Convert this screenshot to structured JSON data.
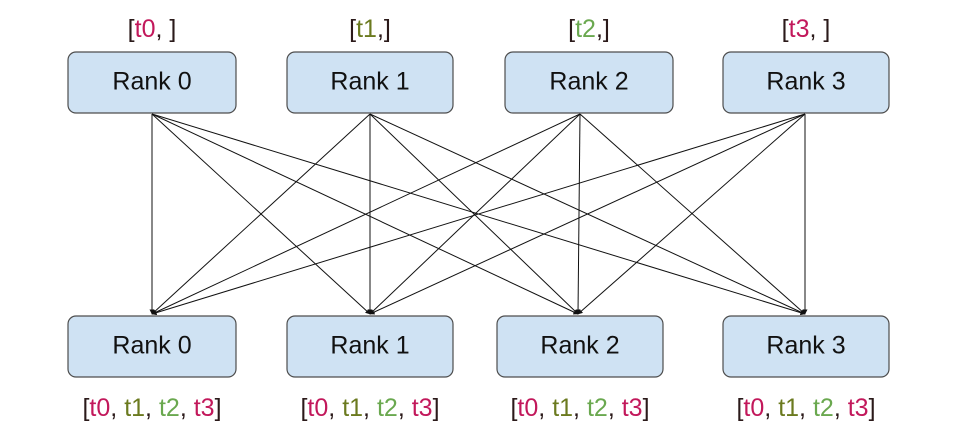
{
  "top_nodes": [
    {
      "label": "Rank 0",
      "tensors": [
        "[",
        "t0",
        ", ]"
      ]
    },
    {
      "label": "Rank 1",
      "tensors": [
        "[",
        "t1",
        ",]"
      ]
    },
    {
      "label": "Rank 2",
      "tensors": [
        "[",
        "t2",
        ",]"
      ]
    },
    {
      "label": "Rank 3",
      "tensors": [
        "[",
        "t3",
        ", ]"
      ]
    }
  ],
  "bottom_nodes": [
    {
      "label": "Rank 0",
      "tensors": [
        "[",
        "t0",
        ", ",
        "t1",
        ", ",
        "t2",
        ", ",
        "t3",
        "]"
      ]
    },
    {
      "label": "Rank 1",
      "tensors": [
        "[",
        "t0",
        ", ",
        "t1",
        ", ",
        "t2",
        ", ",
        "t3",
        "]"
      ]
    },
    {
      "label": "Rank 2",
      "tensors": [
        "[",
        "t0",
        ", ",
        "t1",
        ", ",
        "t2",
        ", ",
        "t3",
        "]"
      ]
    },
    {
      "label": "Rank 3",
      "tensors": [
        "[",
        "t0",
        ", ",
        "t1",
        ", ",
        "t2",
        ", ",
        "t3",
        "]"
      ]
    }
  ]
}
